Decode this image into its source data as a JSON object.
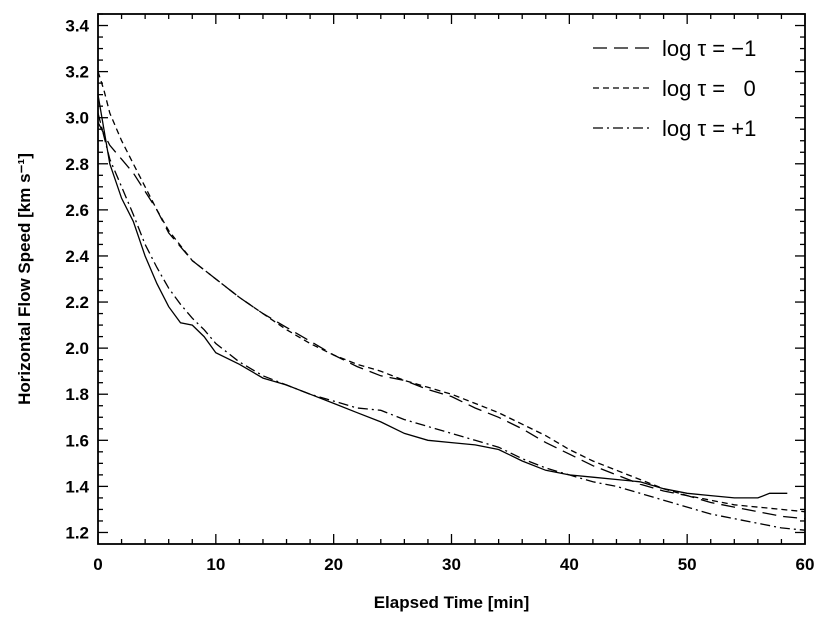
{
  "chart_data": {
    "type": "line",
    "xlabel": "Elapsed Time  [min]",
    "ylabel": "Horizontal Flow Speed  [km s⁻¹]",
    "xlim": [
      0,
      60
    ],
    "ylim": [
      1.15,
      3.45
    ],
    "xticks": [
      0,
      10,
      20,
      30,
      40,
      50,
      60
    ],
    "yticks": [
      1.2,
      1.4,
      1.6,
      1.8,
      2.0,
      2.2,
      2.4,
      2.6,
      2.8,
      3.0,
      3.2,
      3.4
    ],
    "xtick_labels": [
      "0",
      "10",
      "20",
      "30",
      "40",
      "50",
      "60"
    ],
    "ytick_labels": [
      "1.2",
      "1.4",
      "1.6",
      "1.8",
      "2.0",
      "2.2",
      "2.4",
      "2.6",
      "2.8",
      "3.0",
      "3.2",
      "3.4"
    ],
    "grid": false,
    "legend_position": "top-right",
    "series": [
      {
        "style": "solid",
        "x": [
          0,
          0.5,
          1,
          2,
          3,
          4,
          5,
          6,
          7,
          8,
          9,
          10,
          12,
          14,
          16,
          18,
          20,
          22,
          24,
          26,
          28,
          30,
          32,
          34,
          36,
          38,
          40,
          42,
          44,
          46,
          48,
          50,
          52,
          54,
          56,
          57,
          58.5
        ],
        "y": [
          3.1,
          2.95,
          2.8,
          2.65,
          2.55,
          2.4,
          2.28,
          2.18,
          2.11,
          2.1,
          2.05,
          1.98,
          1.93,
          1.87,
          1.84,
          1.8,
          1.76,
          1.72,
          1.68,
          1.63,
          1.6,
          1.59,
          1.58,
          1.56,
          1.51,
          1.47,
          1.45,
          1.44,
          1.43,
          1.42,
          1.39,
          1.37,
          1.36,
          1.35,
          1.35,
          1.37,
          1.37
        ]
      },
      {
        "name": "log τ = −1",
        "style": "long-dash",
        "x": [
          0,
          1,
          2,
          3,
          4,
          5,
          6,
          8,
          10,
          12,
          14,
          16,
          18,
          20,
          22,
          24,
          26,
          28,
          30,
          32,
          34,
          36,
          38,
          40,
          42,
          44,
          46,
          48,
          50,
          52,
          54,
          56,
          58,
          60
        ],
        "y": [
          2.98,
          2.88,
          2.82,
          2.76,
          2.68,
          2.6,
          2.5,
          2.38,
          2.3,
          2.22,
          2.15,
          2.09,
          2.03,
          1.97,
          1.92,
          1.88,
          1.86,
          1.82,
          1.79,
          1.74,
          1.7,
          1.65,
          1.59,
          1.54,
          1.49,
          1.45,
          1.41,
          1.38,
          1.36,
          1.33,
          1.31,
          1.29,
          1.27,
          1.26
        ]
      },
      {
        "name": "log τ =   0",
        "style": "short-dash",
        "x": [
          0,
          0.5,
          1,
          2,
          3,
          4,
          5,
          6,
          8,
          10,
          12,
          14,
          16,
          18,
          20,
          22,
          24,
          26,
          28,
          30,
          32,
          34,
          36,
          38,
          40,
          42,
          44,
          46,
          48,
          50,
          52,
          54,
          56,
          58,
          60
        ],
        "y": [
          3.2,
          3.12,
          3.02,
          2.9,
          2.8,
          2.7,
          2.6,
          2.51,
          2.38,
          2.3,
          2.22,
          2.15,
          2.08,
          2.02,
          1.97,
          1.93,
          1.9,
          1.86,
          1.83,
          1.8,
          1.76,
          1.72,
          1.67,
          1.62,
          1.56,
          1.51,
          1.47,
          1.43,
          1.39,
          1.36,
          1.34,
          1.32,
          1.31,
          1.3,
          1.29
        ]
      },
      {
        "name": "log τ = +1",
        "style": "dash-dot",
        "x": [
          0,
          0.5,
          1,
          2,
          3,
          4,
          5,
          6,
          7,
          8,
          9,
          10,
          12,
          14,
          16,
          18,
          20,
          22,
          24,
          26,
          28,
          30,
          32,
          34,
          36,
          38,
          40,
          42,
          44,
          46,
          48,
          50,
          52,
          54,
          56,
          58,
          60
        ],
        "y": [
          3.02,
          2.92,
          2.82,
          2.7,
          2.58,
          2.45,
          2.35,
          2.26,
          2.19,
          2.13,
          2.08,
          2.02,
          1.94,
          1.88,
          1.84,
          1.8,
          1.77,
          1.74,
          1.73,
          1.69,
          1.66,
          1.63,
          1.6,
          1.57,
          1.52,
          1.48,
          1.45,
          1.42,
          1.4,
          1.37,
          1.34,
          1.31,
          1.28,
          1.26,
          1.24,
          1.22,
          1.21
        ]
      }
    ]
  }
}
